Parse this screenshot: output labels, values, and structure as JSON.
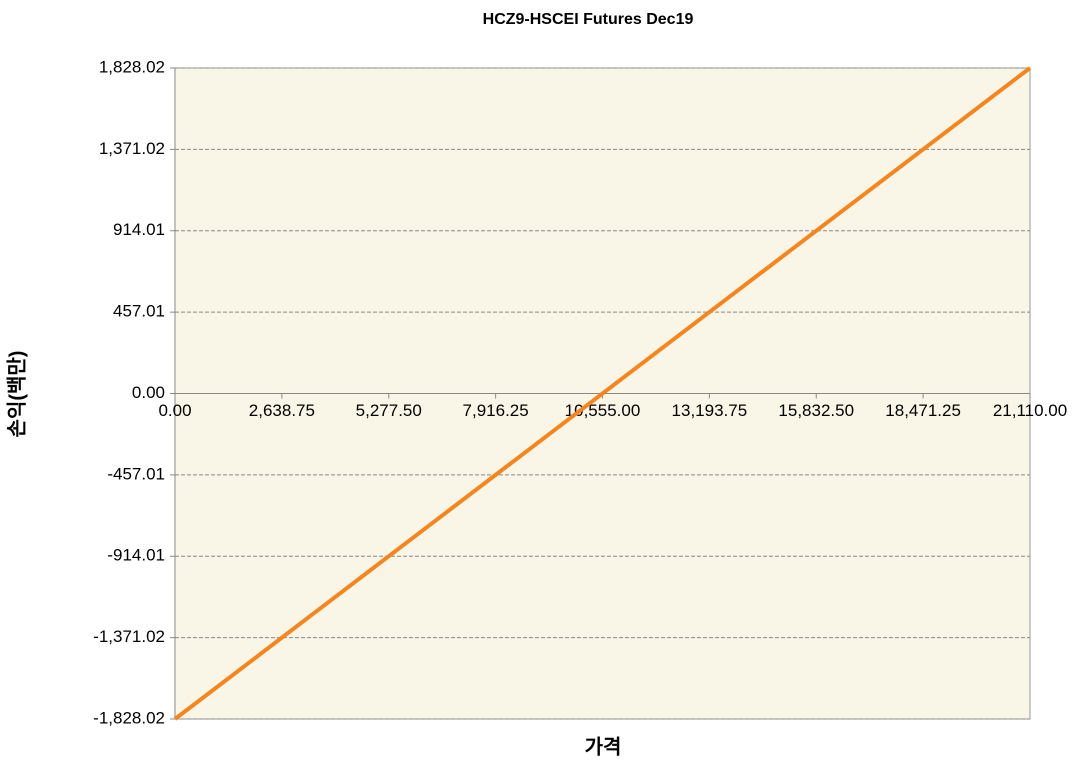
{
  "chart_data": {
    "type": "line",
    "title": "HCZ9-HSCEI Futures Dec19",
    "x_label": "가격",
    "y_label": "손익(백만)",
    "x": [
      0,
      21110
    ],
    "series": [
      {
        "name": "HCZ9-HSCEI Futures Dec19",
        "color": "#f5861f",
        "values": [
          -1828.02,
          1828.02
        ]
      }
    ],
    "xlim": [
      0,
      21110
    ],
    "xticks": [
      {
        "value": 0,
        "label": "0.00"
      },
      {
        "value": 2638.75,
        "label": "2,638.75"
      },
      {
        "value": 5277.5,
        "label": "5,277.50"
      },
      {
        "value": 7916.25,
        "label": "7,916.25"
      },
      {
        "value": 10555,
        "label": "10,555.00"
      },
      {
        "value": 13193.75,
        "label": "13,193.75"
      },
      {
        "value": 15832.5,
        "label": "15,832.50"
      },
      {
        "value": 18471.25,
        "label": "18,471.25"
      },
      {
        "value": 21110,
        "label": "21,110.00"
      }
    ],
    "ylim": [
      -1828.02,
      1828.02
    ],
    "yticks": [
      {
        "value": -1828.02,
        "label": "-1,828.02"
      },
      {
        "value": -1371.02,
        "label": "-1,371.02"
      },
      {
        "value": -914.01,
        "label": "-914.01"
      },
      {
        "value": -457.01,
        "label": "-457.01"
      },
      {
        "value": 0,
        "label": "0.00"
      },
      {
        "value": 457.01,
        "label": "457.01"
      },
      {
        "value": 914.01,
        "label": "914.01"
      },
      {
        "value": 1371.02,
        "label": "1,371.02"
      },
      {
        "value": 1828.02,
        "label": "1,828.02"
      }
    ],
    "grid": true
  }
}
